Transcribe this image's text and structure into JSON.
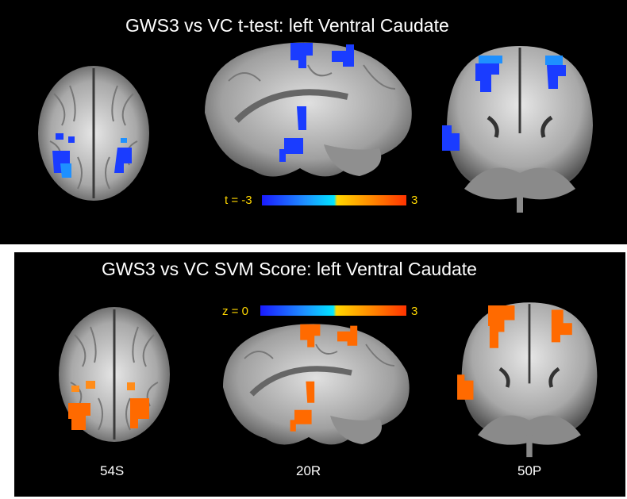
{
  "figure": {
    "top_title": "GWS3 vs VC t-test: left Ventral Caudate",
    "bottom_title": "GWS3 vs VC SVM Score: left Ventral Caudate",
    "top_colorbar": {
      "min_label": "t = -3",
      "max_label": "3",
      "min": -3,
      "max": 3
    },
    "bottom_colorbar": {
      "min_label": "z = 0",
      "max_label": "3",
      "min": 0,
      "max": 3
    },
    "slice_labels": [
      "54S",
      "20R",
      "50P"
    ],
    "colors": {
      "background": "#000000",
      "brain_tissue": "#9a9a9a",
      "blue_cluster": "#1a3cff",
      "light_blue_cluster": "#1e90ff",
      "orange_cluster": "#ff6a00",
      "bright_orange_cluster": "#ff8c1a",
      "colorbar_text": "#ffd700"
    }
  }
}
